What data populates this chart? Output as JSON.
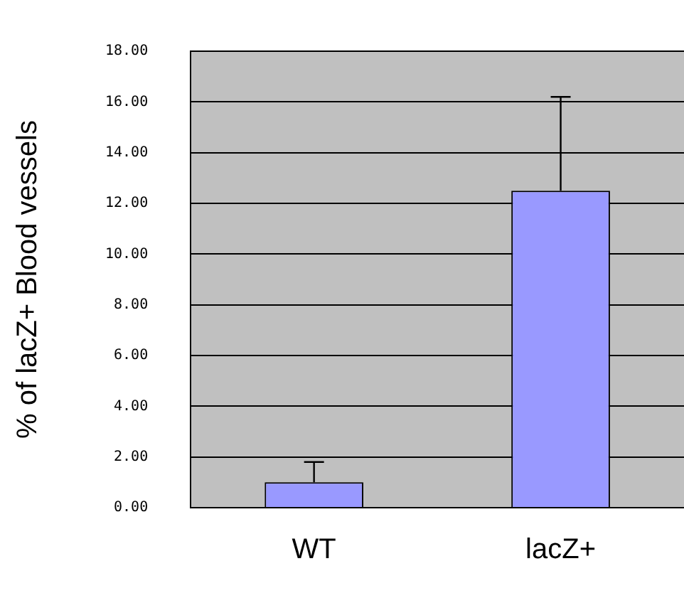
{
  "chart_data": {
    "type": "bar",
    "ylabel": "% of lacZ+ Blood vessels",
    "categories": [
      "WT",
      "lacZ+"
    ],
    "values": [
      1.0,
      12.5
    ],
    "color": "#9999ff",
    "errors": [
      [
        1.0,
        1.8
      ],
      [
        12.5,
        16.2
      ]
    ],
    "ylim": [
      0,
      18
    ],
    "yticks": [
      {
        "value": 0,
        "label": "0.00"
      },
      {
        "value": 2,
        "label": "2.00"
      },
      {
        "value": 4,
        "label": "4.00"
      },
      {
        "value": 6,
        "label": "6.00"
      },
      {
        "value": 8,
        "label": "8.00"
      },
      {
        "value": 10,
        "label": "10.00"
      },
      {
        "value": 12,
        "label": "12.00"
      },
      {
        "value": 14,
        "label": "14.00"
      },
      {
        "value": 16,
        "label": "16.00"
      },
      {
        "value": 18,
        "label": "18.00"
      }
    ],
    "grid": "y",
    "legend": false
  }
}
